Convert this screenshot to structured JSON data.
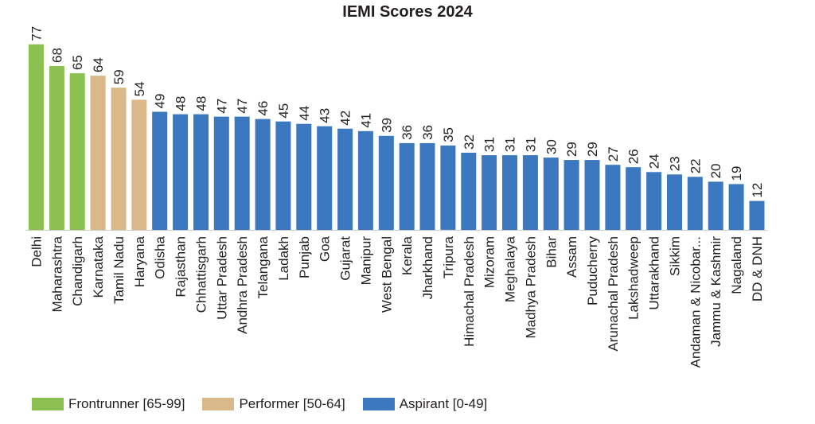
{
  "chart_data": {
    "type": "bar",
    "title": "IEMI Scores 2024",
    "xlabel": "",
    "ylabel": "",
    "ylim": [
      0,
      80
    ],
    "grid": false,
    "legend_position": "bottom-left",
    "categories": [
      "Delhi",
      "Maharashtra",
      "Chandigarh",
      "Karnataka",
      "Tamil Nadu",
      "Haryana",
      "Odisha",
      "Rajasthan",
      "Chhattisgarh",
      "Uttar Pradesh",
      "Andhra Pradesh",
      "Telangana",
      "Ladakh",
      "Punjab",
      "Goa",
      "Gujarat",
      "Manipur",
      "West Bengal",
      "Kerala",
      "Jharkhand",
      "Tripura",
      "Himachal Pradesh",
      "Mizoram",
      "Meghalaya",
      "Madhya Pradesh",
      "Bihar",
      "Assam",
      "Puducherry",
      "Arunachal Pradesh",
      "Lakshadweep",
      "Uttarakhand",
      "Sikkim",
      "Andaman & Nicobar...",
      "Jammu & Kashmir",
      "Nagaland",
      "DD & DNH"
    ],
    "values": [
      77,
      68,
      65,
      64,
      59,
      54,
      49,
      48,
      48,
      47,
      47,
      46,
      45,
      44,
      43,
      42,
      41,
      39,
      36,
      36,
      35,
      32,
      31,
      31,
      31,
      30,
      29,
      29,
      27,
      26,
      24,
      23,
      22,
      20,
      19,
      12
    ],
    "category_group": [
      "frontrunner",
      "frontrunner",
      "frontrunner",
      "performer",
      "performer",
      "performer",
      "aspirant",
      "aspirant",
      "aspirant",
      "aspirant",
      "aspirant",
      "aspirant",
      "aspirant",
      "aspirant",
      "aspirant",
      "aspirant",
      "aspirant",
      "aspirant",
      "aspirant",
      "aspirant",
      "aspirant",
      "aspirant",
      "aspirant",
      "aspirant",
      "aspirant",
      "aspirant",
      "aspirant",
      "aspirant",
      "aspirant",
      "aspirant",
      "aspirant",
      "aspirant",
      "aspirant",
      "aspirant",
      "aspirant",
      "aspirant"
    ],
    "groups": [
      {
        "key": "frontrunner",
        "label": "Frontrunner [65-99]",
        "color": "#8cc152"
      },
      {
        "key": "performer",
        "label": "Performer [50-64]",
        "color": "#d9b98a"
      },
      {
        "key": "aspirant",
        "label": "Aspirant [0-49]",
        "color": "#3b78bf"
      }
    ]
  }
}
